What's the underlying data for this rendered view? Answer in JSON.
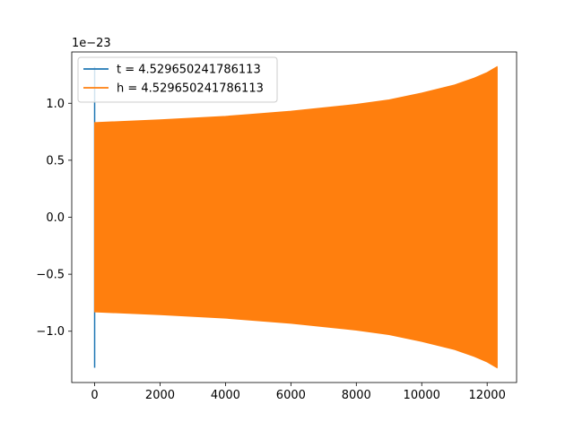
{
  "chart_data": {
    "type": "line",
    "offset_text": "1e−23",
    "xlim": [
      -700,
      12900
    ],
    "ylim": [
      -1.45,
      1.45
    ],
    "x_ticks": [
      0,
      2000,
      4000,
      6000,
      8000,
      10000,
      12000
    ],
    "x_tick_labels": [
      "0",
      "2000",
      "4000",
      "6000",
      "8000",
      "10000",
      "12000"
    ],
    "y_ticks": [
      -1.0,
      -0.5,
      0.0,
      0.5,
      1.0
    ],
    "y_tick_labels": [
      "−1.0",
      "−0.5",
      "0.0",
      "0.5",
      "1.0"
    ],
    "grid": false,
    "legend_position": "upper-left",
    "series": [
      {
        "name": "t = 4.529650241786113",
        "color": "#1f77b4",
        "points": [
          [
            0,
            -1.32
          ],
          [
            0,
            1.32
          ]
        ]
      },
      {
        "name": "h = 4.529650241786113",
        "color": "#ff7f0e",
        "envelope": [
          [
            0,
            0.83
          ],
          [
            2000,
            0.855
          ],
          [
            4000,
            0.885
          ],
          [
            6000,
            0.93
          ],
          [
            8000,
            0.99
          ],
          [
            9000,
            1.03
          ],
          [
            10000,
            1.09
          ],
          [
            11000,
            1.16
          ],
          [
            11600,
            1.22
          ],
          [
            12000,
            1.27
          ],
          [
            12300,
            1.32
          ]
        ]
      }
    ]
  }
}
